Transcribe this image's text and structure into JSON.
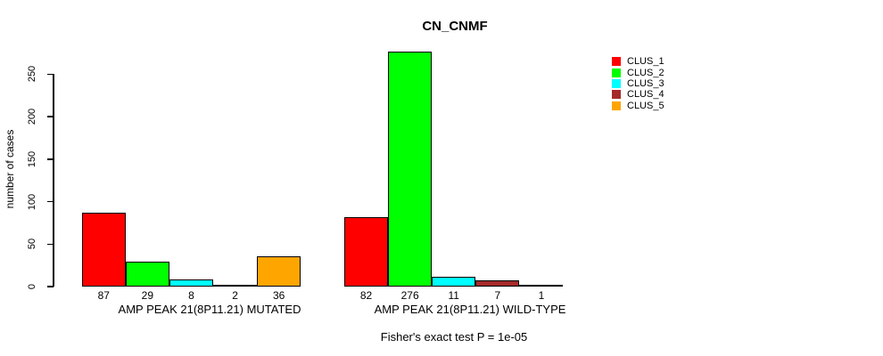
{
  "title": "CN_CNMF",
  "chart_data": {
    "type": "bar",
    "title": "CN_CNMF",
    "xlabel": "",
    "ylabel": "number of cases",
    "ylim": [
      0,
      250
    ],
    "yticks": [
      0,
      50,
      100,
      150,
      200,
      250
    ],
    "grid": false,
    "legend_position": "top-right-outside",
    "series_names": [
      "CLUS_1",
      "CLUS_2",
      "CLUS_3",
      "CLUS_4",
      "CLUS_5"
    ],
    "series_colors": [
      "#FF0000",
      "#00FF00",
      "#00FFFF",
      "#A52A2A",
      "#FFA500"
    ],
    "groups": [
      {
        "label": "AMP PEAK 21(8P11.21) MUTATED",
        "values": [
          87,
          29,
          8,
          2,
          36
        ]
      },
      {
        "label": "AMP PEAK 21(8P11.21) WILD-TYPE",
        "values": [
          82,
          276,
          11,
          7,
          1
        ]
      }
    ],
    "annotation": "Fisher's exact test P = 1e-05"
  },
  "legend": {
    "items": [
      {
        "label": "CLUS_1",
        "color": "#FF0000"
      },
      {
        "label": "CLUS_2",
        "color": "#00FF00"
      },
      {
        "label": "CLUS_3",
        "color": "#00FFFF"
      },
      {
        "label": "CLUS_4",
        "color": "#A52A2A"
      },
      {
        "label": "CLUS_5",
        "color": "#FFA500"
      }
    ]
  },
  "footer": {
    "fisher_text": "Fisher's exact test P = 1e-05"
  }
}
